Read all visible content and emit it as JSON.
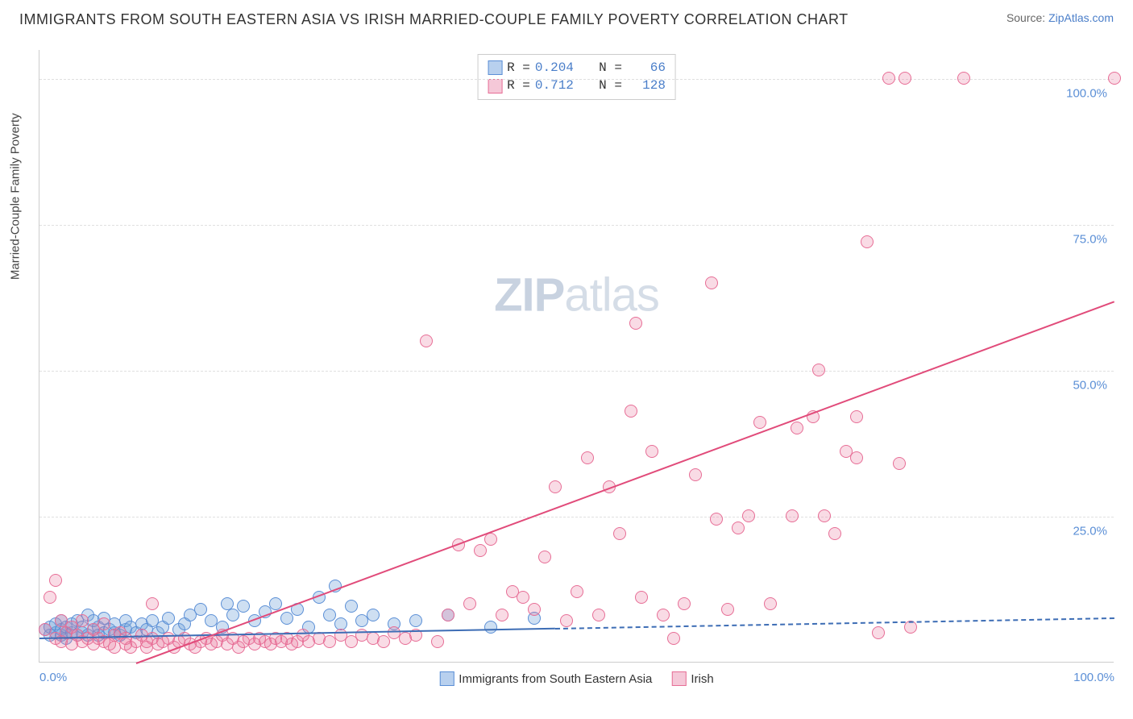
{
  "title": "IMMIGRANTS FROM SOUTH EASTERN ASIA VS IRISH MARRIED-COUPLE FAMILY POVERTY CORRELATION CHART",
  "source_label": "Source:",
  "source_link": "ZipAtlas.com",
  "watermark": {
    "zip": "ZIP",
    "atlas": "atlas"
  },
  "ylabel": "Married-Couple Family Poverty",
  "chart": {
    "type": "scatter",
    "xlim": [
      0,
      100
    ],
    "ylim": [
      0,
      105
    ],
    "xticks": [
      {
        "v": 0,
        "l": "0.0%"
      },
      {
        "v": 100,
        "l": "100.0%"
      }
    ],
    "yticks": [
      {
        "v": 25,
        "l": "25.0%"
      },
      {
        "v": 50,
        "l": "50.0%"
      },
      {
        "v": 75,
        "l": "75.0%"
      },
      {
        "v": 100,
        "l": "100.0%"
      }
    ],
    "grid_color": "#e0e0e0",
    "background_color": "#ffffff",
    "series": [
      {
        "name": "Immigrants from South Eastern Asia",
        "color_fill": "rgba(116,162,218,0.35)",
        "color_stroke": "#5b8fd6",
        "swatch_fill": "#b8d0ee",
        "swatch_border": "#5b8fd6",
        "marker_r": 8,
        "R": "0.204",
        "N": "66",
        "trend": {
          "x1": 0,
          "y1": 4.3,
          "x2": 48,
          "y2": 6.0,
          "dash_after_x": 48,
          "x2d": 100,
          "y2d": 7.8,
          "color": "#3d6db5",
          "width": 2
        },
        "points": [
          [
            0.5,
            5.5
          ],
          [
            1,
            4.5
          ],
          [
            1,
            6
          ],
          [
            1.5,
            5
          ],
          [
            1.5,
            6.5
          ],
          [
            2,
            4.5
          ],
          [
            2,
            5.5
          ],
          [
            2,
            7
          ],
          [
            2.5,
            4
          ],
          [
            2.5,
            5
          ],
          [
            2.5,
            6
          ],
          [
            3,
            5
          ],
          [
            3,
            6.5
          ],
          [
            3.5,
            4.5
          ],
          [
            3.5,
            7
          ],
          [
            4,
            5
          ],
          [
            4,
            6
          ],
          [
            4.5,
            4.5
          ],
          [
            4.5,
            8
          ],
          [
            5,
            5.5
          ],
          [
            5,
            7
          ],
          [
            5.5,
            4.5
          ],
          [
            5.5,
            6
          ],
          [
            6,
            5
          ],
          [
            6,
            7.5
          ],
          [
            6.5,
            5.5
          ],
          [
            7,
            5
          ],
          [
            7,
            6.5
          ],
          [
            7.5,
            4.5
          ],
          [
            8,
            5.5
          ],
          [
            8,
            7
          ],
          [
            8.5,
            6
          ],
          [
            9,
            5
          ],
          [
            9.5,
            6.5
          ],
          [
            10,
            5.5
          ],
          [
            10.5,
            7
          ],
          [
            11,
            5
          ],
          [
            11.5,
            6
          ],
          [
            12,
            7.5
          ],
          [
            13,
            5.5
          ],
          [
            13.5,
            6.5
          ],
          [
            14,
            8
          ],
          [
            15,
            9
          ],
          [
            16,
            7
          ],
          [
            17,
            6
          ],
          [
            17.5,
            10
          ],
          [
            18,
            8
          ],
          [
            19,
            9.5
          ],
          [
            20,
            7
          ],
          [
            21,
            8.5
          ],
          [
            22,
            10
          ],
          [
            23,
            7.5
          ],
          [
            24,
            9
          ],
          [
            25,
            6
          ],
          [
            26,
            11
          ],
          [
            27,
            8
          ],
          [
            27.5,
            13
          ],
          [
            28,
            6.5
          ],
          [
            29,
            9.5
          ],
          [
            30,
            7
          ],
          [
            31,
            8
          ],
          [
            33,
            6.5
          ],
          [
            35,
            7
          ],
          [
            38,
            8
          ],
          [
            42,
            6
          ],
          [
            46,
            7.5
          ]
        ]
      },
      {
        "name": "Irish",
        "color_fill": "rgba(233,110,150,0.25)",
        "color_stroke": "#e76e96",
        "swatch_fill": "#f5c8d8",
        "swatch_border": "#e76e96",
        "marker_r": 8,
        "R": "0.712",
        "N": "128",
        "trend": {
          "x1": 9,
          "y1": 0,
          "x2": 100,
          "y2": 62,
          "color": "#e14b7a",
          "width": 2
        },
        "points": [
          [
            0.5,
            5.5
          ],
          [
            1,
            11
          ],
          [
            1.5,
            4
          ],
          [
            1.5,
            14
          ],
          [
            2,
            3.5
          ],
          [
            2,
            7
          ],
          [
            2.5,
            5
          ],
          [
            3,
            3
          ],
          [
            3,
            6
          ],
          [
            3.5,
            4.5
          ],
          [
            4,
            3.5
          ],
          [
            4,
            7
          ],
          [
            4.5,
            4
          ],
          [
            5,
            3
          ],
          [
            5,
            5.5
          ],
          [
            5.5,
            4
          ],
          [
            6,
            3.5
          ],
          [
            6,
            6.5
          ],
          [
            6.5,
            3
          ],
          [
            7,
            4.5
          ],
          [
            7,
            2.5
          ],
          [
            7.5,
            5
          ],
          [
            8,
            3
          ],
          [
            8,
            4
          ],
          [
            8.5,
            2.5
          ],
          [
            9,
            3.5
          ],
          [
            9.5,
            4.5
          ],
          [
            10,
            2.5
          ],
          [
            10,
            3.5
          ],
          [
            10.5,
            4
          ],
          [
            10.5,
            10
          ],
          [
            11,
            3
          ],
          [
            11.5,
            3.5
          ],
          [
            12,
            4
          ],
          [
            12.5,
            2.5
          ],
          [
            13,
            3.5
          ],
          [
            13.5,
            4
          ],
          [
            14,
            3
          ],
          [
            14.5,
            2.5
          ],
          [
            15,
            3.5
          ],
          [
            15.5,
            4
          ],
          [
            16,
            3
          ],
          [
            16.5,
            3.5
          ],
          [
            17,
            4.5
          ],
          [
            17.5,
            3
          ],
          [
            18,
            4
          ],
          [
            18.5,
            2.5
          ],
          [
            19,
            3.5
          ],
          [
            19.5,
            4
          ],
          [
            20,
            3
          ],
          [
            20.5,
            4
          ],
          [
            21,
            3.5
          ],
          [
            21.5,
            3
          ],
          [
            22,
            4
          ],
          [
            22.5,
            3.5
          ],
          [
            23,
            4
          ],
          [
            23.5,
            3
          ],
          [
            24,
            3.5
          ],
          [
            24.5,
            4.5
          ],
          [
            25,
            3.5
          ],
          [
            26,
            4
          ],
          [
            27,
            3.5
          ],
          [
            28,
            4.5
          ],
          [
            29,
            3.5
          ],
          [
            30,
            4.5
          ],
          [
            31,
            4
          ],
          [
            32,
            3.5
          ],
          [
            33,
            5
          ],
          [
            34,
            4
          ],
          [
            35,
            4.5
          ],
          [
            36,
            55
          ],
          [
            37,
            3.5
          ],
          [
            38,
            8
          ],
          [
            39,
            20
          ],
          [
            40,
            10
          ],
          [
            41,
            19
          ],
          [
            42,
            21
          ],
          [
            43,
            8
          ],
          [
            44,
            12
          ],
          [
            45,
            11
          ],
          [
            46,
            9
          ],
          [
            47,
            18
          ],
          [
            48,
            30
          ],
          [
            49,
            7
          ],
          [
            50,
            12
          ],
          [
            51,
            35
          ],
          [
            52,
            8
          ],
          [
            53,
            30
          ],
          [
            54,
            22
          ],
          [
            55,
            43
          ],
          [
            55.5,
            58
          ],
          [
            56,
            11
          ],
          [
            57,
            36
          ],
          [
            58,
            8
          ],
          [
            59,
            4
          ],
          [
            60,
            10
          ],
          [
            61,
            32
          ],
          [
            62.5,
            65
          ],
          [
            63,
            24.5
          ],
          [
            64,
            9
          ],
          [
            65,
            23
          ],
          [
            66,
            25
          ],
          [
            67,
            41
          ],
          [
            68,
            10
          ],
          [
            70,
            25
          ],
          [
            70.5,
            40
          ],
          [
            72,
            42
          ],
          [
            72.5,
            50
          ],
          [
            73,
            25
          ],
          [
            74,
            22
          ],
          [
            75,
            36
          ],
          [
            76,
            35
          ],
          [
            76,
            42
          ],
          [
            77,
            72
          ],
          [
            78,
            5
          ],
          [
            79,
            100
          ],
          [
            80,
            34
          ],
          [
            80.5,
            100
          ],
          [
            81,
            6
          ],
          [
            86,
            100
          ],
          [
            100,
            100
          ]
        ]
      }
    ],
    "bottom_legend": [
      {
        "label": "Immigrants from South Eastern Asia",
        "fill": "#b8d0ee",
        "border": "#5b8fd6"
      },
      {
        "label": "Irish",
        "fill": "#f5c8d8",
        "border": "#e76e96"
      }
    ]
  }
}
